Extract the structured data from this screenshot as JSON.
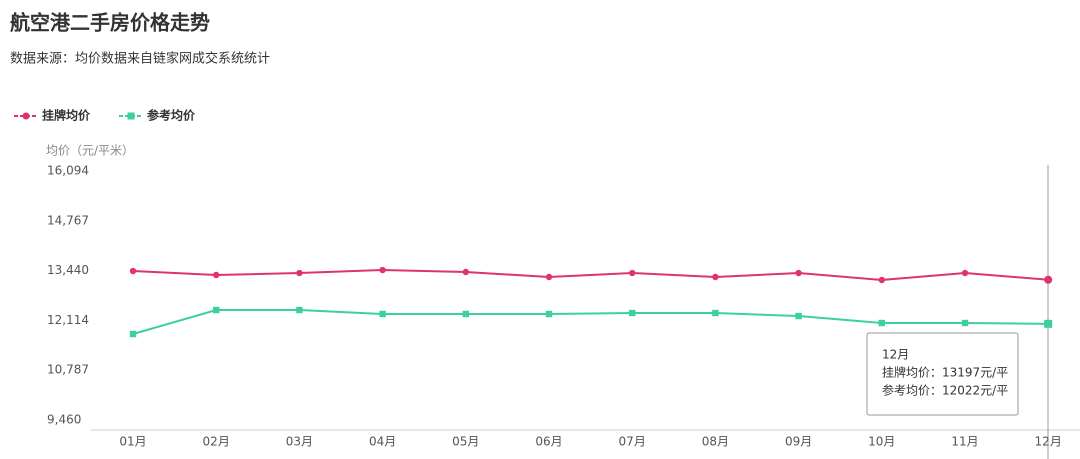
{
  "chart_data": {
    "type": "line",
    "title": "航空港二手房价格走势",
    "subtitle": "数据来源：均价数据来自链家网成交系统统计",
    "y_label": "均价（元/平米）",
    "categories": [
      "01月",
      "02月",
      "03月",
      "04月",
      "05月",
      "06月",
      "07月",
      "08月",
      "09月",
      "10月",
      "11月",
      "12月"
    ],
    "series": [
      {
        "name": "挂牌均价",
        "color": "#e0336e",
        "marker": "circle",
        "values": [
          13429,
          13323,
          13376,
          13456,
          13403,
          13270,
          13376,
          13270,
          13376,
          13190,
          13376,
          13197
        ]
      },
      {
        "name": "参考均价",
        "color": "#3ecfa0",
        "marker": "square",
        "values": [
          11751,
          12390,
          12390,
          12284,
          12284,
          12284,
          12310,
          12310,
          12230,
          12044,
          12044,
          12022
        ]
      }
    ],
    "ylim": [
      9460,
      16094
    ],
    "yticks": [
      {
        "value": 9460,
        "label": "9,460"
      },
      {
        "value": 10787,
        "label": "10,787"
      },
      {
        "value": 12114,
        "label": "12,114"
      },
      {
        "value": 13440,
        "label": "13,440"
      },
      {
        "value": 14767,
        "label": "14,767"
      },
      {
        "value": 16094,
        "label": "16,094"
      }
    ],
    "legend": "top-left",
    "tooltip": {
      "title": "12月",
      "lines": [
        "挂牌均价：13197元/平",
        "参考均价：12022元/平"
      ]
    }
  }
}
